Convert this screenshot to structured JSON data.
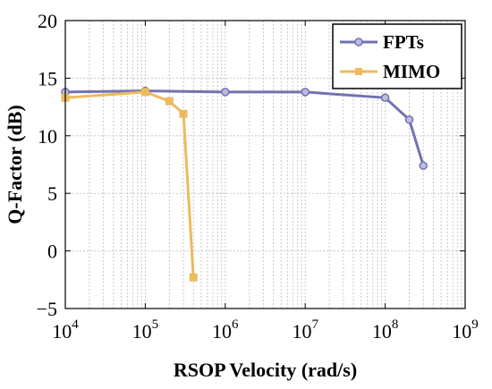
{
  "chart_data": {
    "type": "line",
    "xscale": "log",
    "xlabel": "RSOP Velocity (rad/s)",
    "ylabel": "Q-Factor (dB)",
    "xlim": [
      10000,
      1000000000
    ],
    "ylim": [
      -5,
      20
    ],
    "grid": true,
    "legend_position": "top-right",
    "x_tick_labels": [
      {
        "base": "10",
        "exp": "4",
        "value": 10000
      },
      {
        "base": "10",
        "exp": "5",
        "value": 100000
      },
      {
        "base": "10",
        "exp": "6",
        "value": 1000000
      },
      {
        "base": "10",
        "exp": "7",
        "value": 10000000
      },
      {
        "base": "10",
        "exp": "8",
        "value": 100000000
      },
      {
        "base": "10",
        "exp": "9",
        "value": 1000000000
      }
    ],
    "y_ticks": [
      -5,
      0,
      5,
      10,
      15,
      20
    ],
    "series": [
      {
        "name": "FPTs",
        "color": "#7272b3",
        "marker": "circle",
        "x": [
          10000,
          100000,
          1000000,
          10000000,
          100000000,
          200000000,
          300000000
        ],
        "y": [
          13.8,
          13.9,
          13.8,
          13.8,
          13.3,
          11.4,
          7.4
        ]
      },
      {
        "name": "MIMO",
        "color": "#ecbb5e",
        "marker": "square",
        "x": [
          10000,
          100000,
          200000,
          300000,
          400000
        ],
        "y": [
          13.3,
          13.8,
          13.0,
          11.9,
          -2.3
        ]
      }
    ]
  }
}
